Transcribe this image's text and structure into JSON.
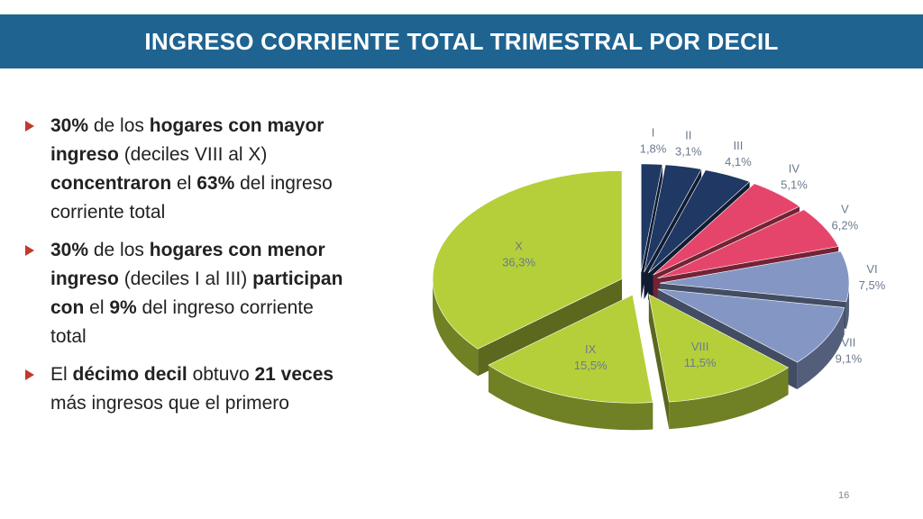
{
  "slide": {
    "title": "INGRESO CORRIENTE TOTAL TRIMESTRAL POR DECIL",
    "page_number": "16"
  },
  "bullets": [
    [
      {
        "t": "30%",
        "b": true
      },
      {
        "t": " de los ",
        "b": false
      },
      {
        "t": "hogares con mayor ingreso",
        "b": true
      },
      {
        "t": " (deciles VIII al X) ",
        "b": false
      },
      {
        "t": "concentraron",
        "b": true
      },
      {
        "t": " el ",
        "b": false
      },
      {
        "t": "63%",
        "b": true
      },
      {
        "t": " del ingreso corriente total",
        "b": false
      }
    ],
    [
      {
        "t": "30%",
        "b": true
      },
      {
        "t": " de los ",
        "b": false
      },
      {
        "t": "hogares con menor ingreso",
        "b": true
      },
      {
        "t": " (deciles I al III) ",
        "b": false
      },
      {
        "t": "participan con",
        "b": true
      },
      {
        "t": " el ",
        "b": false
      },
      {
        "t": "9%",
        "b": true
      },
      {
        "t": " del ingreso corriente total",
        "b": false
      }
    ],
    [
      {
        "t": "El ",
        "b": false
      },
      {
        "t": "décimo decil",
        "b": true
      },
      {
        "t": " obtuvo ",
        "b": false
      },
      {
        "t": "21 veces",
        "b": true
      },
      {
        "t": " más ingresos que el primero",
        "b": false
      }
    ]
  ],
  "colors": {
    "title_bg": "#1f6391",
    "bullet_marker": "#c0392b"
  },
  "chart_data": {
    "type": "pie",
    "title": "",
    "slices": [
      {
        "label": "I",
        "value": 1.8,
        "pct_label": "1,8%",
        "color": "#1f3864"
      },
      {
        "label": "II",
        "value": 3.1,
        "pct_label": "3,1%",
        "color": "#1f3864"
      },
      {
        "label": "III",
        "value": 4.1,
        "pct_label": "4,1%",
        "color": "#1f3864"
      },
      {
        "label": "IV",
        "value": 5.1,
        "pct_label": "5,1%",
        "color": "#e6456b"
      },
      {
        "label": "V",
        "value": 6.2,
        "pct_label": "6,2%",
        "color": "#e6456b"
      },
      {
        "label": "VI",
        "value": 7.5,
        "pct_label": "7,5%",
        "color": "#8497c4"
      },
      {
        "label": "VII",
        "value": 9.1,
        "pct_label": "9,1%",
        "color": "#8497c4"
      },
      {
        "label": "VIII",
        "value": 11.5,
        "pct_label": "11,5%",
        "color": "#b5cf3a"
      },
      {
        "label": "IX",
        "value": 15.5,
        "pct_label": "15,5%",
        "color": "#b5cf3a"
      },
      {
        "label": "X",
        "value": 36.3,
        "pct_label": "36,3%",
        "color": "#b5cf3a"
      }
    ],
    "label_color": "#6b7a8f"
  }
}
